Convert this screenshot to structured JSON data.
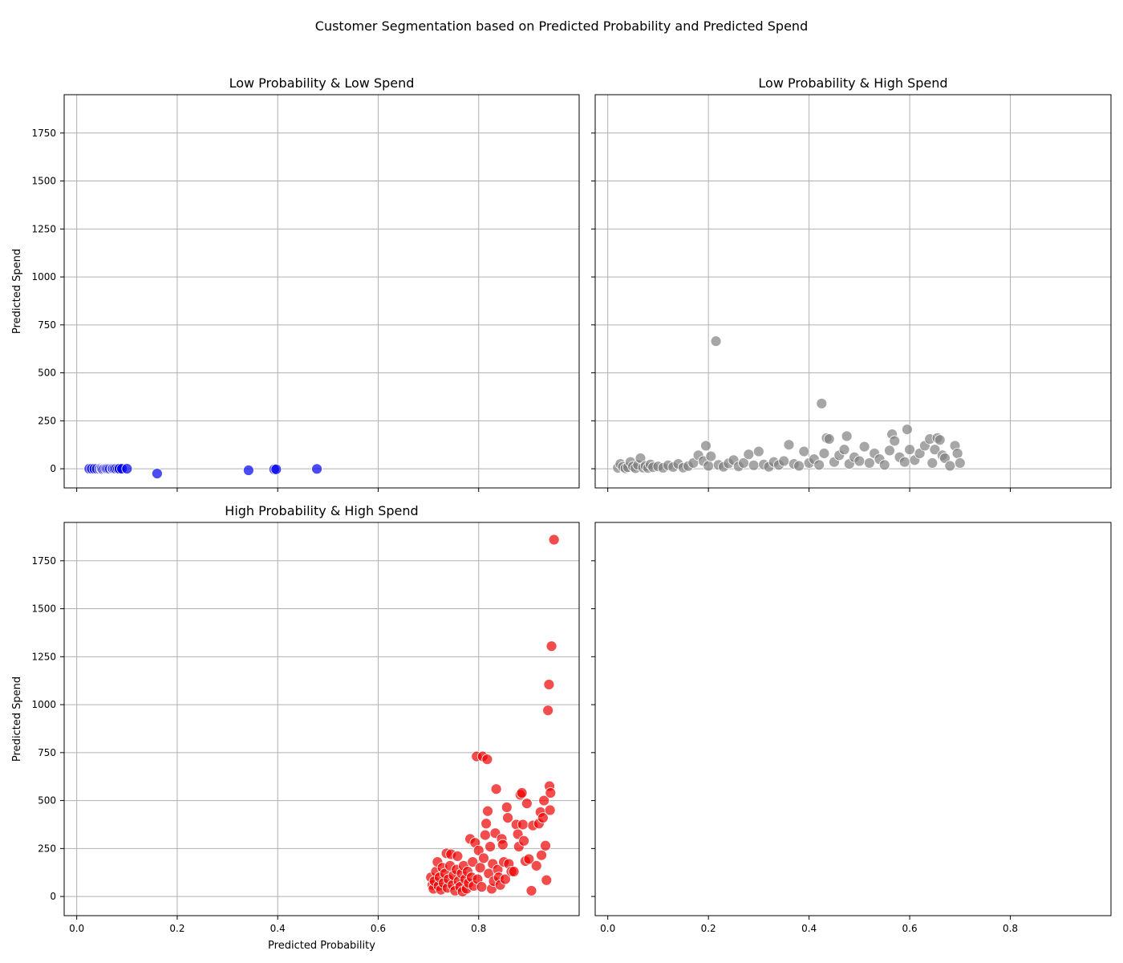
{
  "figure": {
    "title": "Customer Segmentation based on Predicted Probability and Predicted Spend"
  },
  "chart_data": [
    {
      "type": "scatter",
      "title": "Low Probability & Low Spend",
      "xlabel": "",
      "ylabel": "Predicted Spend",
      "xlim": [
        -0.025,
        1.0
      ],
      "ylim": [
        -100,
        1950
      ],
      "xticks": [
        0.0,
        0.2,
        0.4,
        0.6,
        0.8
      ],
      "yticks": [
        0,
        250,
        500,
        750,
        1000,
        1250,
        1500,
        1750
      ],
      "show_xtick_labels": false,
      "show_ytick_labels": true,
      "grid": true,
      "color": "#0000ee",
      "points": [
        {
          "x": 0.025,
          "y": 0
        },
        {
          "x": 0.03,
          "y": 0
        },
        {
          "x": 0.035,
          "y": 0
        },
        {
          "x": 0.04,
          "y": 0
        },
        {
          "x": 0.045,
          "y": 0
        },
        {
          "x": 0.048,
          "y": 2
        },
        {
          "x": 0.05,
          "y": 0
        },
        {
          "x": 0.052,
          "y": -2
        },
        {
          "x": 0.055,
          "y": 0
        },
        {
          "x": 0.058,
          "y": 1
        },
        {
          "x": 0.06,
          "y": 0
        },
        {
          "x": 0.063,
          "y": 0
        },
        {
          "x": 0.066,
          "y": 0
        },
        {
          "x": 0.07,
          "y": 1
        },
        {
          "x": 0.072,
          "y": 0
        },
        {
          "x": 0.075,
          "y": 0
        },
        {
          "x": 0.078,
          "y": 0
        },
        {
          "x": 0.082,
          "y": 0
        },
        {
          "x": 0.085,
          "y": 0
        },
        {
          "x": 0.09,
          "y": 0
        },
        {
          "x": 0.1,
          "y": 0
        },
        {
          "x": 0.16,
          "y": -25
        },
        {
          "x": 0.342,
          "y": -8
        },
        {
          "x": 0.393,
          "y": -3
        },
        {
          "x": 0.397,
          "y": -3
        },
        {
          "x": 0.478,
          "y": -1
        }
      ]
    },
    {
      "type": "scatter",
      "title": "Low Probability & High Spend",
      "xlabel": "",
      "ylabel": "",
      "xlim": [
        -0.025,
        1.0
      ],
      "ylim": [
        -100,
        1950
      ],
      "xticks": [
        0.0,
        0.2,
        0.4,
        0.6,
        0.8
      ],
      "yticks": [
        0,
        250,
        500,
        750,
        1000,
        1250,
        1500,
        1750
      ],
      "show_xtick_labels": false,
      "show_ytick_labels": false,
      "grid": true,
      "color": "#808080",
      "points": [
        {
          "x": 0.02,
          "y": 5
        },
        {
          "x": 0.025,
          "y": 25
        },
        {
          "x": 0.03,
          "y": 10
        },
        {
          "x": 0.035,
          "y": 2
        },
        {
          "x": 0.04,
          "y": 8
        },
        {
          "x": 0.045,
          "y": 35
        },
        {
          "x": 0.05,
          "y": 12
        },
        {
          "x": 0.055,
          "y": 3
        },
        {
          "x": 0.06,
          "y": 20
        },
        {
          "x": 0.065,
          "y": 55
        },
        {
          "x": 0.07,
          "y": 6
        },
        {
          "x": 0.075,
          "y": 15
        },
        {
          "x": 0.08,
          "y": 4
        },
        {
          "x": 0.085,
          "y": 22
        },
        {
          "x": 0.09,
          "y": 8
        },
        {
          "x": 0.1,
          "y": 12
        },
        {
          "x": 0.11,
          "y": 5
        },
        {
          "x": 0.12,
          "y": 18
        },
        {
          "x": 0.13,
          "y": 9
        },
        {
          "x": 0.14,
          "y": 25
        },
        {
          "x": 0.15,
          "y": 6
        },
        {
          "x": 0.16,
          "y": 14
        },
        {
          "x": 0.17,
          "y": 30
        },
        {
          "x": 0.18,
          "y": 70
        },
        {
          "x": 0.19,
          "y": 40
        },
        {
          "x": 0.195,
          "y": 120
        },
        {
          "x": 0.2,
          "y": 15
        },
        {
          "x": 0.205,
          "y": 65
        },
        {
          "x": 0.215,
          "y": 665
        },
        {
          "x": 0.22,
          "y": 20
        },
        {
          "x": 0.23,
          "y": 10
        },
        {
          "x": 0.24,
          "y": 28
        },
        {
          "x": 0.25,
          "y": 45
        },
        {
          "x": 0.26,
          "y": 12
        },
        {
          "x": 0.27,
          "y": 30
        },
        {
          "x": 0.28,
          "y": 75
        },
        {
          "x": 0.29,
          "y": 18
        },
        {
          "x": 0.3,
          "y": 90
        },
        {
          "x": 0.31,
          "y": 22
        },
        {
          "x": 0.32,
          "y": 10
        },
        {
          "x": 0.33,
          "y": 35
        },
        {
          "x": 0.34,
          "y": 20
        },
        {
          "x": 0.35,
          "y": 40
        },
        {
          "x": 0.36,
          "y": 125
        },
        {
          "x": 0.37,
          "y": 25
        },
        {
          "x": 0.38,
          "y": 15
        },
        {
          "x": 0.39,
          "y": 90
        },
        {
          "x": 0.4,
          "y": 30
        },
        {
          "x": 0.41,
          "y": 50
        },
        {
          "x": 0.42,
          "y": 20
        },
        {
          "x": 0.425,
          "y": 340
        },
        {
          "x": 0.43,
          "y": 80
        },
        {
          "x": 0.435,
          "y": 160
        },
        {
          "x": 0.44,
          "y": 155
        },
        {
          "x": 0.45,
          "y": 35
        },
        {
          "x": 0.46,
          "y": 70
        },
        {
          "x": 0.47,
          "y": 100
        },
        {
          "x": 0.475,
          "y": 170
        },
        {
          "x": 0.48,
          "y": 25
        },
        {
          "x": 0.49,
          "y": 60
        },
        {
          "x": 0.5,
          "y": 40
        },
        {
          "x": 0.51,
          "y": 115
        },
        {
          "x": 0.52,
          "y": 30
        },
        {
          "x": 0.53,
          "y": 80
        },
        {
          "x": 0.54,
          "y": 50
        },
        {
          "x": 0.55,
          "y": 20
        },
        {
          "x": 0.56,
          "y": 95
        },
        {
          "x": 0.565,
          "y": 180
        },
        {
          "x": 0.57,
          "y": 145
        },
        {
          "x": 0.58,
          "y": 60
        },
        {
          "x": 0.59,
          "y": 35
        },
        {
          "x": 0.595,
          "y": 205
        },
        {
          "x": 0.6,
          "y": 100
        },
        {
          "x": 0.61,
          "y": 45
        },
        {
          "x": 0.62,
          "y": 80
        },
        {
          "x": 0.63,
          "y": 120
        },
        {
          "x": 0.64,
          "y": 155
        },
        {
          "x": 0.645,
          "y": 30
        },
        {
          "x": 0.65,
          "y": 100
        },
        {
          "x": 0.655,
          "y": 160
        },
        {
          "x": 0.66,
          "y": 150
        },
        {
          "x": 0.665,
          "y": 70
        },
        {
          "x": 0.67,
          "y": 55
        },
        {
          "x": 0.68,
          "y": 15
        },
        {
          "x": 0.69,
          "y": 120
        },
        {
          "x": 0.695,
          "y": 80
        },
        {
          "x": 0.7,
          "y": 30
        }
      ]
    },
    {
      "type": "scatter",
      "title": "High Probability & High Spend",
      "xlabel": "Predicted Probability",
      "ylabel": "Predicted Spend",
      "xlim": [
        -0.025,
        1.0
      ],
      "ylim": [
        -100,
        1950
      ],
      "xticks": [
        0.0,
        0.2,
        0.4,
        0.6,
        0.8
      ],
      "yticks": [
        0,
        250,
        500,
        750,
        1000,
        1250,
        1500,
        1750
      ],
      "show_xtick_labels": true,
      "show_ytick_labels": true,
      "grid": true,
      "color": "#ee0000",
      "points": [
        {
          "x": 0.705,
          "y": 100
        },
        {
          "x": 0.708,
          "y": 60
        },
        {
          "x": 0.71,
          "y": 40
        },
        {
          "x": 0.712,
          "y": 80
        },
        {
          "x": 0.715,
          "y": 130
        },
        {
          "x": 0.718,
          "y": 180
        },
        {
          "x": 0.72,
          "y": 55
        },
        {
          "x": 0.722,
          "y": 100
        },
        {
          "x": 0.725,
          "y": 35
        },
        {
          "x": 0.728,
          "y": 150
        },
        {
          "x": 0.73,
          "y": 70
        },
        {
          "x": 0.733,
          "y": 120
        },
        {
          "x": 0.736,
          "y": 225
        },
        {
          "x": 0.738,
          "y": 45
        },
        {
          "x": 0.74,
          "y": 90
        },
        {
          "x": 0.743,
          "y": 160
        },
        {
          "x": 0.745,
          "y": 220
        },
        {
          "x": 0.748,
          "y": 60
        },
        {
          "x": 0.75,
          "y": 110
        },
        {
          "x": 0.753,
          "y": 30
        },
        {
          "x": 0.756,
          "y": 140
        },
        {
          "x": 0.758,
          "y": 210
        },
        {
          "x": 0.76,
          "y": 80
        },
        {
          "x": 0.763,
          "y": 50
        },
        {
          "x": 0.766,
          "y": 120
        },
        {
          "x": 0.768,
          "y": 25
        },
        {
          "x": 0.77,
          "y": 160
        },
        {
          "x": 0.773,
          "y": 90
        },
        {
          "x": 0.776,
          "y": 40
        },
        {
          "x": 0.778,
          "y": 130
        },
        {
          "x": 0.78,
          "y": 70
        },
        {
          "x": 0.783,
          "y": 300
        },
        {
          "x": 0.786,
          "y": 100
        },
        {
          "x": 0.788,
          "y": 180
        },
        {
          "x": 0.79,
          "y": 55
        },
        {
          "x": 0.793,
          "y": 280
        },
        {
          "x": 0.796,
          "y": 730
        },
        {
          "x": 0.798,
          "y": 90
        },
        {
          "x": 0.8,
          "y": 240
        },
        {
          "x": 0.803,
          "y": 150
        },
        {
          "x": 0.806,
          "y": 50
        },
        {
          "x": 0.808,
          "y": 730
        },
        {
          "x": 0.81,
          "y": 200
        },
        {
          "x": 0.813,
          "y": 320
        },
        {
          "x": 0.815,
          "y": 380
        },
        {
          "x": 0.817,
          "y": 715
        },
        {
          "x": 0.818,
          "y": 445
        },
        {
          "x": 0.82,
          "y": 120
        },
        {
          "x": 0.823,
          "y": 260
        },
        {
          "x": 0.826,
          "y": 40
        },
        {
          "x": 0.828,
          "y": 170
        },
        {
          "x": 0.83,
          "y": 80
        },
        {
          "x": 0.833,
          "y": 330
        },
        {
          "x": 0.835,
          "y": 560
        },
        {
          "x": 0.838,
          "y": 140
        },
        {
          "x": 0.84,
          "y": 100
        },
        {
          "x": 0.843,
          "y": 60
        },
        {
          "x": 0.846,
          "y": 300
        },
        {
          "x": 0.848,
          "y": 270
        },
        {
          "x": 0.85,
          "y": 180
        },
        {
          "x": 0.853,
          "y": 90
        },
        {
          "x": 0.856,
          "y": 465
        },
        {
          "x": 0.858,
          "y": 410
        },
        {
          "x": 0.86,
          "y": 170
        },
        {
          "x": 0.865,
          "y": 130
        },
        {
          "x": 0.87,
          "y": 130
        },
        {
          "x": 0.875,
          "y": 375
        },
        {
          "x": 0.878,
          "y": 325
        },
        {
          "x": 0.88,
          "y": 260
        },
        {
          "x": 0.883,
          "y": 530
        },
        {
          "x": 0.886,
          "y": 540
        },
        {
          "x": 0.888,
          "y": 375
        },
        {
          "x": 0.89,
          "y": 290
        },
        {
          "x": 0.893,
          "y": 185
        },
        {
          "x": 0.896,
          "y": 485
        },
        {
          "x": 0.9,
          "y": 195
        },
        {
          "x": 0.905,
          "y": 30
        },
        {
          "x": 0.908,
          "y": 370
        },
        {
          "x": 0.915,
          "y": 160
        },
        {
          "x": 0.92,
          "y": 380
        },
        {
          "x": 0.923,
          "y": 440
        },
        {
          "x": 0.925,
          "y": 215
        },
        {
          "x": 0.928,
          "y": 410
        },
        {
          "x": 0.93,
          "y": 500
        },
        {
          "x": 0.933,
          "y": 265
        },
        {
          "x": 0.935,
          "y": 85
        },
        {
          "x": 0.938,
          "y": 970
        },
        {
          "x": 0.94,
          "y": 1105
        },
        {
          "x": 0.941,
          "y": 575
        },
        {
          "x": 0.942,
          "y": 450
        },
        {
          "x": 0.943,
          "y": 540
        },
        {
          "x": 0.945,
          "y": 1305
        },
        {
          "x": 0.95,
          "y": 1860
        }
      ]
    },
    {
      "type": "scatter",
      "title": "",
      "xlabel": "",
      "ylabel": "",
      "xlim": [
        -0.025,
        1.0
      ],
      "ylim": [
        -100,
        1950
      ],
      "xticks": [
        0.0,
        0.2,
        0.4,
        0.6,
        0.8
      ],
      "yticks": [
        0,
        250,
        500,
        750,
        1000,
        1250,
        1500,
        1750
      ],
      "show_xtick_labels": true,
      "show_ytick_labels": false,
      "grid": false,
      "color": "#808080",
      "points": []
    }
  ]
}
